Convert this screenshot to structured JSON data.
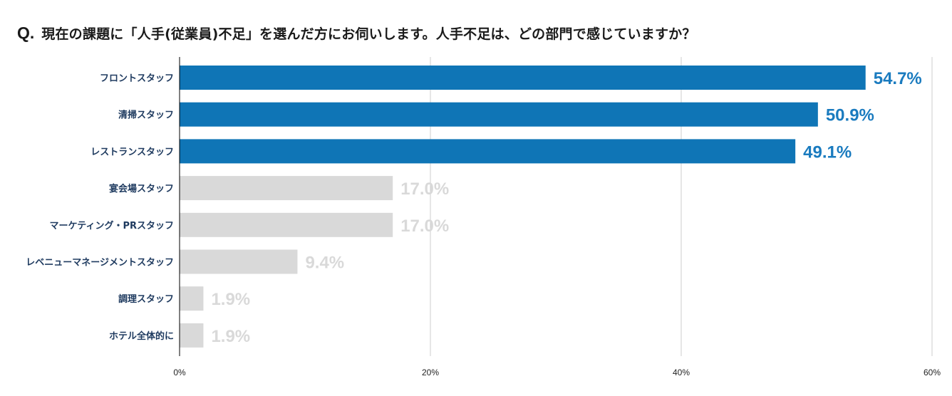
{
  "question": {
    "prefix": "Q.",
    "text": "現在の課題に「人手(従業員)不足」を選んだ方にお伺いします。人手不足は、どの部門で感じていますか？"
  },
  "colors": {
    "highlight_bar": "#0f75b6",
    "muted_bar": "#d9d9d9",
    "highlight_label": "#1a7bbf",
    "muted_label": "#d9d9d9",
    "category_label": "#1e3a5f",
    "gridline": "#cccccc",
    "axis": "#000000"
  },
  "chart_data": {
    "type": "bar",
    "orientation": "horizontal",
    "title": "現在の課題に「人手(従業員)不足」を選んだ方にお伺いします。人手不足は、どの部門で感じていますか？",
    "categories": [
      "フロントスタッフ",
      "清掃スタッフ",
      "レストランスタッフ",
      "宴会場スタッフ",
      "マーケティング・PRスタッフ",
      "レベニューマネージメントスタッフ",
      "調理スタッフ",
      "ホテル全体的に"
    ],
    "values": [
      54.7,
      50.9,
      49.1,
      17.0,
      17.0,
      9.4,
      1.9,
      1.9
    ],
    "value_labels": [
      "54.7%",
      "50.9%",
      "49.1%",
      "17.0%",
      "17.0%",
      "9.4%",
      "1.9%",
      "1.9%"
    ],
    "highlighted": [
      true,
      true,
      true,
      false,
      false,
      false,
      false,
      false
    ],
    "xlim": [
      0,
      60
    ],
    "xticks": [
      0,
      20,
      40,
      60
    ],
    "xtick_labels": [
      "0%",
      "20%",
      "40%",
      "60%"
    ],
    "xlabel": "",
    "ylabel": "",
    "grid": true,
    "legend": "none"
  }
}
